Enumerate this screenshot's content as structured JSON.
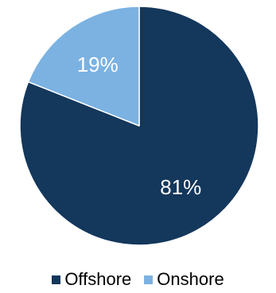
{
  "chart_data": {
    "type": "pie",
    "title": "",
    "categories": [
      "Offshore",
      "Onshore"
    ],
    "values": [
      81,
      19
    ],
    "labels": [
      "81%",
      "19%"
    ],
    "colors": [
      "#14375C",
      "#7BB2E2"
    ],
    "label_colors": [
      "#ffffff",
      "#ffffff"
    ],
    "start_angle_deg": 0,
    "direction": "clockwise",
    "legend_position": "bottom"
  },
  "legend": {
    "items": [
      {
        "label": "Offshore",
        "color": "#14375C"
      },
      {
        "label": "Onshore",
        "color": "#7BB2E2"
      }
    ]
  }
}
